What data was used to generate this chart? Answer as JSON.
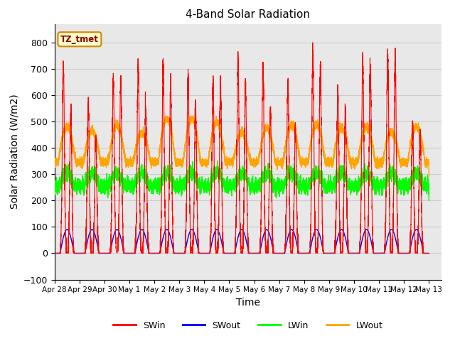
{
  "title": "4-Band Solar Radiation",
  "xlabel": "Time",
  "ylabel": "Solar Radiation (W/m2)",
  "ylim": [
    -100,
    870
  ],
  "yticks": [
    -100,
    0,
    100,
    200,
    300,
    400,
    500,
    600,
    700,
    800
  ],
  "colors": {
    "SWin": "#ff0000",
    "SWout": "#0000ff",
    "LWin": "#00ff00",
    "LWout": "#ffa500"
  },
  "annotation_text": "TZ_tmet",
  "annotation_bg": "#ffffcc",
  "annotation_border": "#cc8800",
  "bg_color": "#ffffff",
  "grid_color": "#cccccc",
  "plot_bg": "#e8e8e8",
  "xtick_labels": [
    "Apr 28",
    "Apr 29",
    "Apr 30",
    "May 1",
    "May 2",
    "May 3",
    "May 4",
    "May 5",
    "May 6",
    "May 7",
    "May 8",
    "May 9",
    "May 10",
    "May 11",
    "May 12",
    "May 13"
  ],
  "n_days": 15,
  "SWin_peaks": [
    715,
    555,
    650,
    705,
    710,
    675,
    645,
    730,
    710,
    645,
    760,
    610,
    755,
    760,
    480,
    770,
    800,
    740
  ],
  "SWin_peaks2": [
    520,
    420,
    650,
    550,
    640,
    570,
    640,
    640,
    540,
    480,
    700,
    550,
    720,
    750,
    450,
    700,
    800,
    650
  ],
  "LWout_base": 345,
  "LWout_peaks": [
    90,
    90,
    90,
    90,
    90,
    90,
    100,
    90,
    80,
    90,
    90,
    100,
    90,
    90,
    80,
    90
  ],
  "LWin_base": 255,
  "LWin_bump": 50,
  "SWout_peak": 90
}
